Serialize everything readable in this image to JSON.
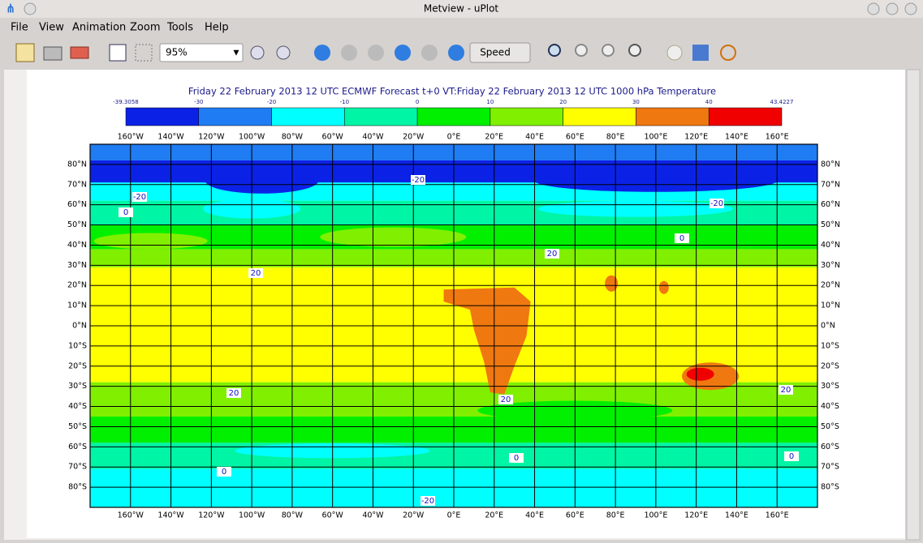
{
  "window": {
    "title": "Metview - uPlot"
  },
  "menu": [
    "File",
    "View",
    "Animation",
    "Zoom",
    "Tools",
    "Help"
  ],
  "toolbar": {
    "zoom": "95%",
    "speed": "Speed"
  },
  "plot": {
    "title": "Friday 22 February 2013 12 UTC ECMWF Forecast t+0 VT:Friday 22 February 2013 12 UTC 1000 hPa  Temperature",
    "legend": {
      "labels": [
        "-39.3058",
        "-30",
        "-20",
        "-10",
        "0",
        "10",
        "20",
        "30",
        "40",
        "43.4227"
      ],
      "colors": [
        "#0b22e6",
        "#1f7cf2",
        "#00ffff",
        "#00f5a5",
        "#00f000",
        "#80f000",
        "#ffff00",
        "#f07810",
        "#f00000"
      ]
    },
    "lon_labels": [
      "160°W",
      "140°W",
      "120°W",
      "100°W",
      "80°W",
      "60°W",
      "40°W",
      "20°W",
      "0°E",
      "20°E",
      "40°E",
      "60°E",
      "80°E",
      "100°E",
      "120°E",
      "140°E",
      "160°E"
    ],
    "lat_labels": [
      "80°N",
      "70°N",
      "60°N",
      "50°N",
      "40°N",
      "30°N",
      "20°N",
      "10°N",
      "0°N",
      "10°S",
      "20°S",
      "30°S",
      "40°S",
      "50°S",
      "60°S",
      "70°S",
      "80°S"
    ],
    "contour_labels": [
      "-20",
      "-20",
      "-20",
      "0",
      "20",
      "20",
      "20",
      "20",
      "20",
      "0",
      "0",
      "0",
      "-20",
      "0"
    ]
  }
}
